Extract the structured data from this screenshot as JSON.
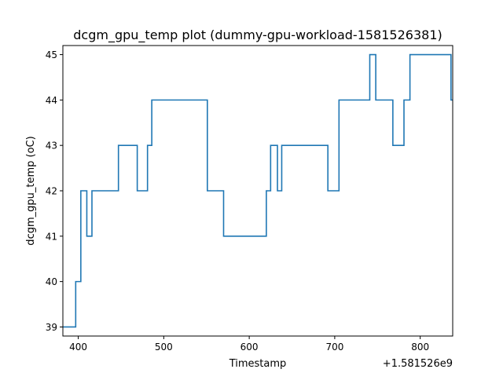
{
  "chart_data": {
    "type": "line",
    "title": "dcgm_gpu_temp plot (dummy-gpu-workload-1581526381)",
    "xlabel": "Timestamp",
    "ylabel": "dcgm_gpu_temp (oC)",
    "x_offset_text": "+1.581526e9",
    "xlim": [
      382,
      838
    ],
    "ylim": [
      38.8,
      45.2
    ],
    "x_ticks": [
      400,
      500,
      600,
      700,
      800
    ],
    "y_ticks": [
      39,
      40,
      41,
      42,
      43,
      44,
      45
    ],
    "grid": false,
    "legend": "none",
    "colors": {
      "line": "#1f77b4",
      "axes": "#000000",
      "background": "#ffffff"
    },
    "series": [
      {
        "x": [
          382,
          397,
          397,
          403,
          403,
          410,
          410,
          416,
          416,
          447,
          447,
          469,
          469,
          481,
          481,
          486,
          486,
          551,
          551,
          570,
          570,
          620,
          620,
          625,
          625,
          633,
          633,
          638,
          638,
          692,
          692,
          705,
          705,
          741,
          741,
          748,
          748,
          768,
          768,
          781,
          781,
          788,
          788,
          836,
          836,
          838
        ],
        "y": [
          39,
          39,
          40,
          40,
          42,
          42,
          41,
          41,
          42,
          42,
          43,
          43,
          42,
          42,
          43,
          43,
          44,
          44,
          42,
          42,
          41,
          41,
          42,
          42,
          43,
          43,
          42,
          42,
          43,
          43,
          42,
          42,
          44,
          44,
          45,
          45,
          44,
          44,
          43,
          43,
          44,
          44,
          45,
          45,
          44,
          44
        ]
      }
    ]
  }
}
